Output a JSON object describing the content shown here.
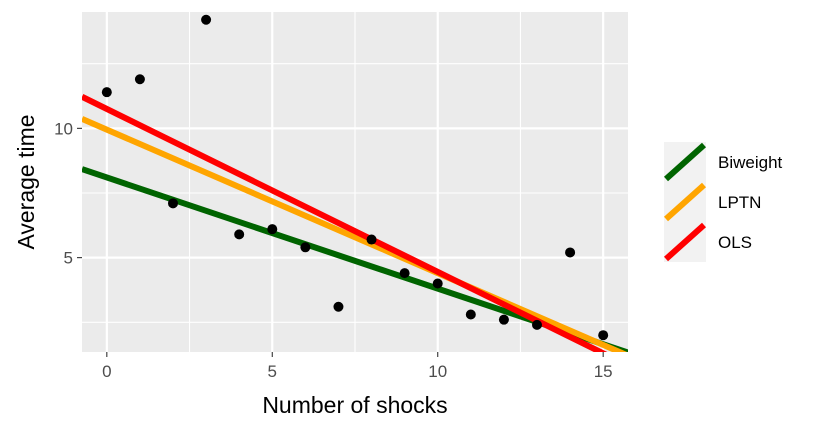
{
  "chart_data": {
    "type": "scatter",
    "title": "",
    "xlabel": "Number of shocks",
    "ylabel": "Average time",
    "xlim": [
      -0.75,
      15.75
    ],
    "ylim": [
      1.35,
      14.5
    ],
    "x_ticks": [
      0,
      5,
      10,
      15
    ],
    "y_ticks": [
      5,
      10
    ],
    "grid": true,
    "legend_position": "right",
    "points": {
      "x": [
        0,
        1,
        2,
        3,
        4,
        5,
        6,
        7,
        8,
        9,
        10,
        11,
        12,
        13,
        14,
        15
      ],
      "y": [
        11.4,
        11.9,
        7.1,
        14.2,
        5.9,
        6.1,
        5.4,
        3.1,
        5.7,
        4.4,
        4.0,
        2.8,
        2.6,
        2.4,
        5.2,
        2.0
      ]
    },
    "series": [
      {
        "name": "Biweight",
        "color": "#006400",
        "intercept": 8.1,
        "slope": -0.43
      },
      {
        "name": "LPTN",
        "color": "#FFA500",
        "intercept": 9.95,
        "slope": -0.555
      },
      {
        "name": "OLS",
        "color": "#FF0000",
        "intercept": 10.75,
        "slope": -0.63
      }
    ]
  }
}
